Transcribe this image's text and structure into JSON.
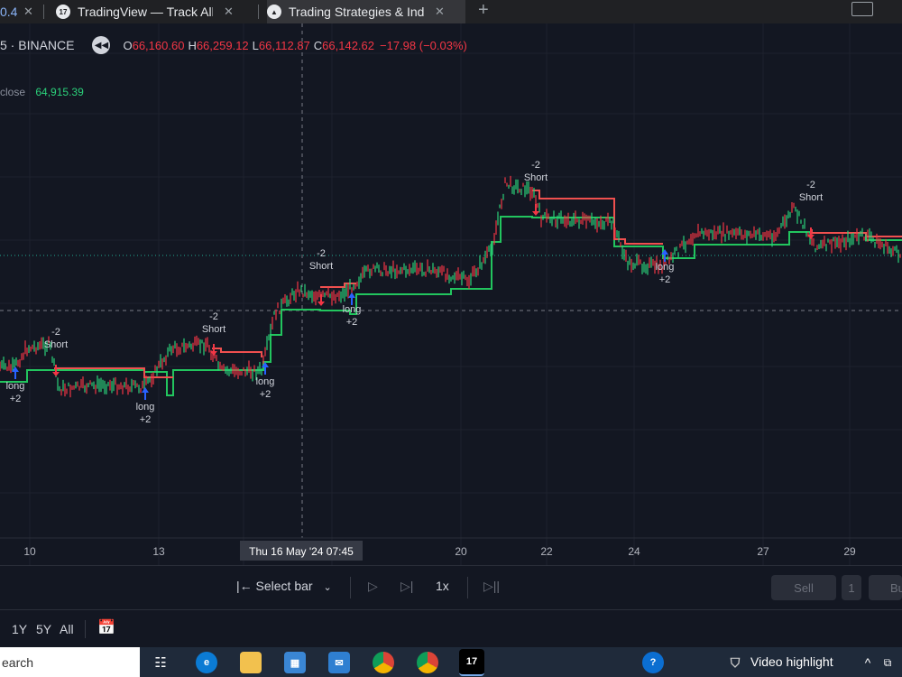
{
  "browser": {
    "tabs": [
      {
        "title": "TradingView — Track All Ma",
        "icon": "tradingview-logo-icon"
      },
      {
        "title": "Trading Strategies & Indicat",
        "icon": "tradingview-logo-icon"
      }
    ],
    "partial_tab_text": "0.4"
  },
  "legend": {
    "symbol": "5 · BINANCE",
    "open_label": "O",
    "open": "66,160.60",
    "high_label": "H",
    "high": "66,259.12",
    "low_label": "L",
    "low": "66,112.87",
    "close_label": "C",
    "close": "66,142.62",
    "change": "−17.98 (−0.03%)"
  },
  "indicator": {
    "label": "close",
    "value": "64,915.39"
  },
  "time_axis": {
    "ticks": [
      "10",
      "13",
      "20",
      "22",
      "24",
      "27",
      "29"
    ],
    "crosshair_label": "Thu 16 May '24   07:45"
  },
  "chart_annotations": {
    "short_signals": [
      {
        "top": "-2",
        "bottom": "Short"
      },
      {
        "top": "-2",
        "bottom": "Short"
      },
      {
        "top": "-2",
        "bottom": "Short"
      },
      {
        "top": "-2",
        "bottom": "Short"
      },
      {
        "top": "-2",
        "bottom": "Short"
      }
    ],
    "long_signals": [
      {
        "top": "long",
        "bottom": "+2"
      },
      {
        "top": "long",
        "bottom": "+2"
      },
      {
        "top": "long",
        "bottom": "+2"
      },
      {
        "top": "long",
        "bottom": "+2"
      },
      {
        "top": "long",
        "bottom": "+2"
      }
    ]
  },
  "colors": {
    "up": "#2bd07a",
    "down": "#f23645",
    "bg": "#131722",
    "trend_up": "#22c55e",
    "trend_down": "#f0504f",
    "arrow_long": "#2962ff",
    "arrow_short": "#f23645"
  },
  "replay_bar": {
    "select_bar": "Select bar",
    "speed": "1x",
    "sell": "Sell",
    "qty": "1",
    "buy": "Bu"
  },
  "range_bar": {
    "r1": "1Y",
    "r2": "5Y",
    "r3": "All"
  },
  "taskbar": {
    "search": "earch",
    "video_highlight": "Video highlight"
  }
}
